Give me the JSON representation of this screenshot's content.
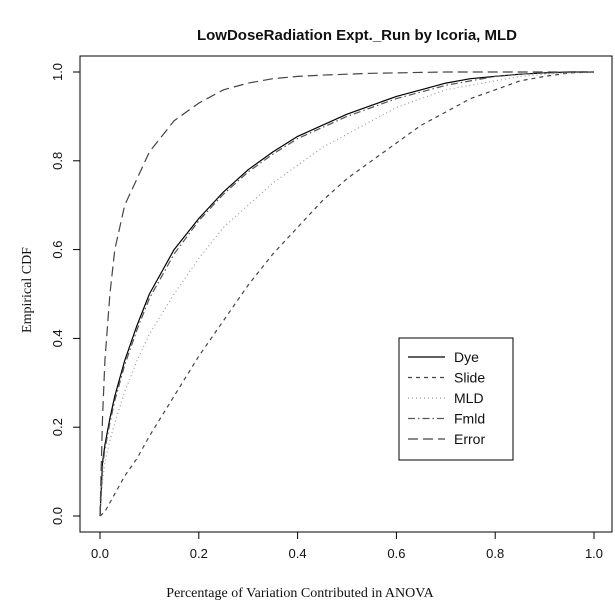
{
  "chart_data": {
    "type": "line",
    "title": "LowDoseRadiation Expt._Run by Icoria, MLD",
    "xlabel": "Percentage of Variation Contributed in ANOVA",
    "ylabel": "Empirical CDF",
    "xlim": [
      0,
      1
    ],
    "ylim": [
      0,
      1
    ],
    "xticks": [
      "0.0",
      "0.2",
      "0.4",
      "0.6",
      "0.8",
      "1.0"
    ],
    "yticks": [
      "0.0",
      "0.2",
      "0.4",
      "0.6",
      "0.8",
      "1.0"
    ],
    "grid": false,
    "legend_position": "bottom-right",
    "x": [
      0,
      0.005,
      0.01,
      0.02,
      0.03,
      0.05,
      0.075,
      0.1,
      0.15,
      0.2,
      0.25,
      0.3,
      0.35,
      0.4,
      0.45,
      0.5,
      0.55,
      0.6,
      0.65,
      0.7,
      0.75,
      0.8,
      0.85,
      0.9,
      0.95,
      1.0
    ],
    "series": [
      {
        "name": "Dye",
        "color": "#000000",
        "dash": "",
        "values": [
          0,
          0.12,
          0.16,
          0.22,
          0.27,
          0.35,
          0.43,
          0.5,
          0.6,
          0.67,
          0.73,
          0.78,
          0.82,
          0.855,
          0.88,
          0.905,
          0.925,
          0.945,
          0.96,
          0.975,
          0.985,
          0.99,
          0.995,
          0.998,
          1.0,
          1.0
        ]
      },
      {
        "name": "Slide",
        "color": "#444444",
        "dash": "4,4",
        "values": [
          0,
          0.005,
          0.01,
          0.03,
          0.05,
          0.09,
          0.13,
          0.18,
          0.27,
          0.36,
          0.44,
          0.52,
          0.59,
          0.65,
          0.71,
          0.76,
          0.8,
          0.84,
          0.88,
          0.91,
          0.94,
          0.96,
          0.98,
          0.99,
          0.998,
          1.0
        ]
      },
      {
        "name": "MLD",
        "color": "#9a9a9a",
        "dash": "1,3",
        "values": [
          0,
          0.08,
          0.12,
          0.17,
          0.21,
          0.28,
          0.35,
          0.41,
          0.5,
          0.58,
          0.65,
          0.7,
          0.75,
          0.79,
          0.83,
          0.86,
          0.89,
          0.92,
          0.94,
          0.96,
          0.97,
          0.98,
          0.99,
          0.995,
          0.998,
          1.0
        ]
      },
      {
        "name": "Fmld",
        "color": "#555555",
        "dash": "7,3,1.5,3",
        "values": [
          0,
          0.11,
          0.15,
          0.21,
          0.26,
          0.34,
          0.42,
          0.49,
          0.59,
          0.665,
          0.725,
          0.775,
          0.815,
          0.85,
          0.875,
          0.9,
          0.92,
          0.94,
          0.955,
          0.97,
          0.98,
          0.99,
          0.995,
          0.998,
          1.0,
          1.0
        ]
      },
      {
        "name": "Error",
        "color": "#444444",
        "dash": "10,5",
        "values": [
          0,
          0.22,
          0.35,
          0.5,
          0.6,
          0.7,
          0.76,
          0.82,
          0.89,
          0.93,
          0.96,
          0.975,
          0.985,
          0.99,
          0.993,
          0.995,
          0.997,
          0.998,
          0.999,
          1.0,
          1.0,
          1.0,
          1.0,
          1.0,
          1.0,
          1.0
        ]
      }
    ]
  }
}
